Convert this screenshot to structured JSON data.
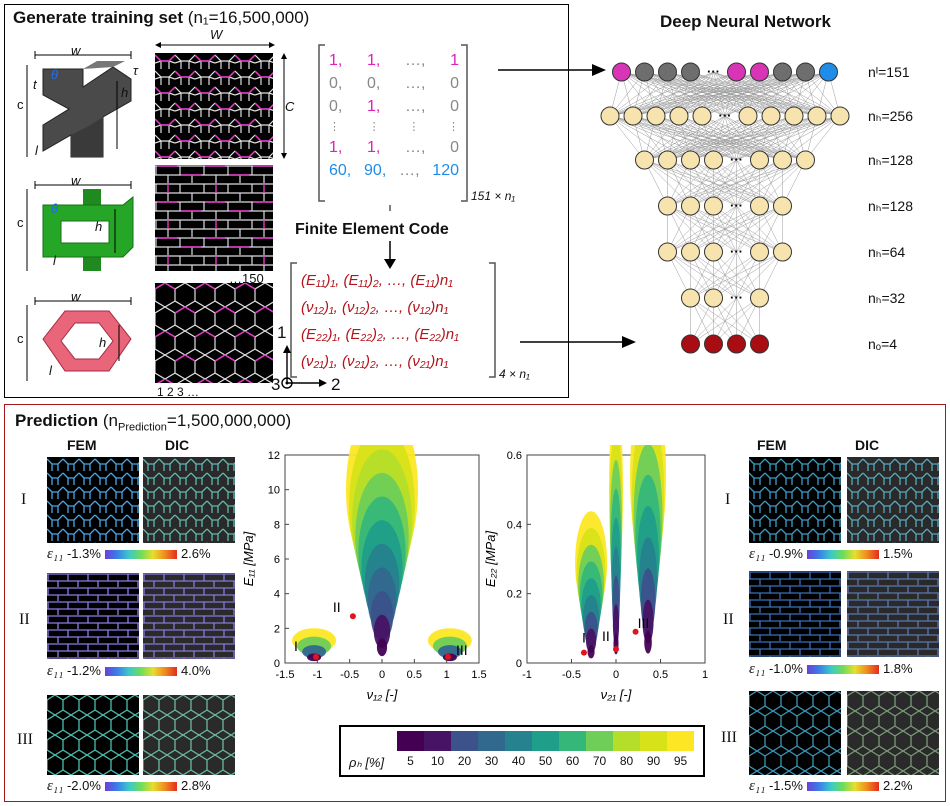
{
  "top": {
    "title": "Generate training set",
    "count": "(n₁=16,500,000)",
    "cell_labels": {
      "w": "w",
      "W": "W",
      "c": "c",
      "C": "C",
      "t": "t",
      "h": "h",
      "l": "l",
      "tau": "τ",
      "theta": "θ",
      "dots150": "…150",
      "index": "1 2 3 …"
    },
    "matrix_rows": [
      [
        "1,",
        "1,",
        "…,",
        "1"
      ],
      [
        "0,",
        "0,",
        "…,",
        "0"
      ],
      [
        "0,",
        "1,",
        "…,",
        "0"
      ],
      [
        "⋮",
        "⋮",
        "⋮",
        "⋮"
      ],
      [
        "1,",
        "1,",
        "…,",
        "0"
      ],
      [
        "60,",
        "90,",
        "…,",
        "120"
      ]
    ],
    "matrix_size": "151 × n₁",
    "fem_label": "Finite Element Code",
    "output_rows": [
      "(E₁₁)₁, (E₁₁)₂, …, (E₁₁)n₁",
      "(ν₁₂)₁, (ν₁₂)₂, …, (ν₁₂)n₁",
      "(E₂₂)₁, (E₂₂)₂, …, (E₂₂)n₁",
      "(ν₂₁)₁, (ν₂₁)₂, …, (ν₂₁)n₁"
    ],
    "output_size": "4 × n₁",
    "axes": {
      "one": "1",
      "two": "2",
      "three": "3"
    }
  },
  "network": {
    "title": "Deep Neural Network",
    "layers": [
      "nᴵ=151",
      "nₕ=256",
      "nₕ=128",
      "nₕ=128",
      "nₕ=64",
      "nₕ=32",
      "nₒ=4"
    ],
    "dots": "···"
  },
  "prediction": {
    "title": "Prediction",
    "count": "(n",
    "count_sub": "Prediction",
    "count_end": "=1,500,000,000)",
    "col_fem": "FEM",
    "col_dic": "DIC",
    "roman": [
      "I",
      "II",
      "III"
    ],
    "strain_symbol": "ε₁₁",
    "left_strains": [
      [
        "-1.3%",
        "2.6%"
      ],
      [
        "-1.2%",
        "4.0%"
      ],
      [
        "-2.0%",
        "2.8%"
      ]
    ],
    "right_strains": [
      [
        "-0.9%",
        "1.5%"
      ],
      [
        "-1.0%",
        "1.8%"
      ],
      [
        "-1.5%",
        "2.2%"
      ]
    ],
    "legend_label": "ρₕ [%]",
    "legend_values": [
      "5",
      "10",
      "20",
      "30",
      "40",
      "50",
      "60",
      "70",
      "80",
      "90",
      "95"
    ],
    "legend_colors": [
      "#440154",
      "#471365",
      "#3b528b",
      "#31688e",
      "#26828e",
      "#1f9e89",
      "#35b779",
      "#6ece58",
      "#b5de2b",
      "#d8e219",
      "#fde725"
    ]
  },
  "chart_data": [
    {
      "type": "scatter",
      "xlabel": "ν₁₂ [-]",
      "ylabel": "E₁₁ [MPa]",
      "xlim": [
        -1.5,
        1.5
      ],
      "ylim": [
        0,
        12
      ],
      "xticks": [
        "-1.5",
        "-1",
        "-0.5",
        "0",
        "0.5",
        "1",
        "1.5"
      ],
      "yticks": [
        "0",
        "2",
        "4",
        "6",
        "8",
        "10",
        "12"
      ],
      "points": [
        {
          "label": "I",
          "x": -1.02,
          "y": 0.35
        },
        {
          "label": "II",
          "x": -0.45,
          "y": 2.7
        },
        {
          "label": "III",
          "x": 1.02,
          "y": 0.35
        }
      ]
    },
    {
      "type": "scatter",
      "xlabel": "ν₂₁ [-]",
      "ylabel": "E₂₂ [MPa]",
      "xlim": [
        -1,
        1
      ],
      "ylim": [
        0,
        0.6
      ],
      "xticks": [
        "-1",
        "-0.5",
        "0",
        "0.5",
        "1"
      ],
      "yticks": [
        "0",
        "0.2",
        "0.4",
        "0.6"
      ],
      "points": [
        {
          "label": "I",
          "x": -0.36,
          "y": 0.03
        },
        {
          "label": "II",
          "x": 0.0,
          "y": 0.04
        },
        {
          "label": "III",
          "x": 0.22,
          "y": 0.09
        }
      ]
    }
  ]
}
